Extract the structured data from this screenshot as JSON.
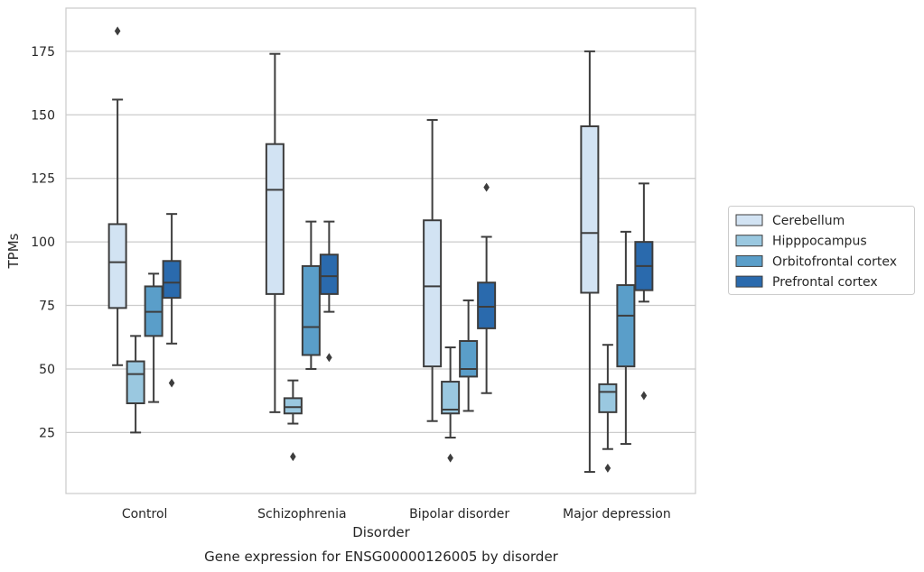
{
  "chart_data": {
    "type": "box",
    "title": "Gene expression for ENSG00000126005 by disorder",
    "xlabel": "Disorder",
    "ylabel": "TPMs",
    "categories": [
      "Control",
      "Schizophrenia",
      "Bipolar disorder",
      "Major depression"
    ],
    "ylim": [
      1,
      192
    ],
    "yticks": [
      25,
      50,
      75,
      100,
      125,
      150,
      175
    ],
    "grid": "horizontal",
    "legend_position": "right",
    "series": [
      {
        "name": "Cerebellum",
        "color": "#d2e3f3",
        "boxes": [
          {
            "whislo": 51.5,
            "q1": 74,
            "med": 92,
            "q3": 107,
            "whishi": 156,
            "fliers": [
              183
            ]
          },
          {
            "whislo": 33,
            "q1": 79.5,
            "med": 120.5,
            "q3": 138.5,
            "whishi": 174,
            "fliers": []
          },
          {
            "whislo": 29.5,
            "q1": 51,
            "med": 82.5,
            "q3": 108.5,
            "whishi": 148,
            "fliers": []
          },
          {
            "whislo": 9.5,
            "q1": 80,
            "med": 103.5,
            "q3": 145.5,
            "whishi": 175,
            "fliers": []
          }
        ]
      },
      {
        "name": "Hipppocampus",
        "color": "#9ac8e0",
        "boxes": [
          {
            "whislo": 25,
            "q1": 36.5,
            "med": 48,
            "q3": 53,
            "whishi": 63,
            "fliers": []
          },
          {
            "whislo": 28.5,
            "q1": 32.5,
            "med": 35,
            "q3": 38.5,
            "whishi": 45.5,
            "fliers": [
              15.5
            ]
          },
          {
            "whislo": 23,
            "q1": 32.5,
            "med": 34,
            "q3": 45,
            "whishi": 58.5,
            "fliers": [
              15
            ]
          },
          {
            "whislo": 18.5,
            "q1": 33,
            "med": 41,
            "q3": 44,
            "whishi": 59.5,
            "fliers": [
              11
            ]
          }
        ]
      },
      {
        "name": "Orbitofrontal cortex",
        "color": "#5a9ec9",
        "boxes": [
          {
            "whislo": 37,
            "q1": 63,
            "med": 72.5,
            "q3": 82.5,
            "whishi": 87.5,
            "fliers": []
          },
          {
            "whislo": 50,
            "q1": 55.5,
            "med": 66.5,
            "q3": 90.5,
            "whishi": 108,
            "fliers": []
          },
          {
            "whislo": 33.5,
            "q1": 47,
            "med": 50,
            "q3": 61,
            "whishi": 77,
            "fliers": []
          },
          {
            "whislo": 20.5,
            "q1": 51,
            "med": 71,
            "q3": 83,
            "whishi": 104,
            "fliers": []
          }
        ]
      },
      {
        "name": "Prefrontal cortex",
        "color": "#2a6aad",
        "boxes": [
          {
            "whislo": 60,
            "q1": 78,
            "med": 84,
            "q3": 92.5,
            "whishi": 111,
            "fliers": [
              44.5
            ]
          },
          {
            "whislo": 72.5,
            "q1": 79.5,
            "med": 86.5,
            "q3": 95,
            "whishi": 108,
            "fliers": [
              54.5
            ]
          },
          {
            "whislo": 40.5,
            "q1": 66,
            "med": 74.5,
            "q3": 84,
            "whishi": 102,
            "fliers": [
              121.5
            ]
          },
          {
            "whislo": 76.5,
            "q1": 81,
            "med": 90.5,
            "q3": 100,
            "whishi": 123,
            "fliers": [
              39.5
            ]
          }
        ]
      }
    ]
  }
}
